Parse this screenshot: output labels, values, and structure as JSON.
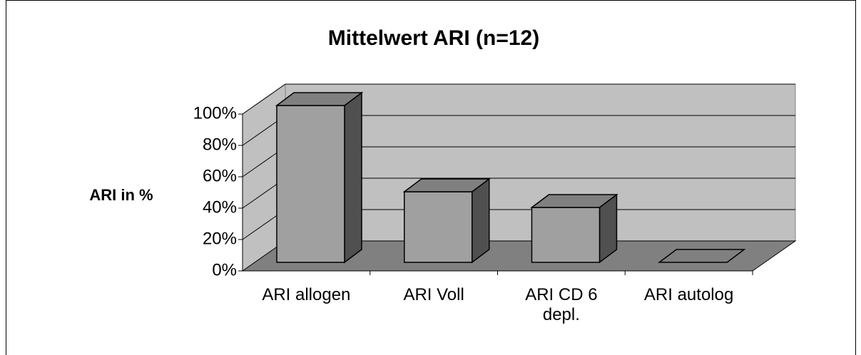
{
  "chart_data": {
    "type": "bar3d",
    "title": "Mittelwert ARI (n=12)",
    "ylabel": "ARI in %",
    "categories": [
      "ARI allogen",
      "ARI Voll",
      "ARI CD 6 depl.",
      "ARI autolog"
    ],
    "values": [
      100,
      45,
      35,
      0
    ],
    "ylim": [
      0,
      100
    ],
    "yticks": [
      {
        "value": 0,
        "label": "0%"
      },
      {
        "value": 20,
        "label": "20%"
      },
      {
        "value": 40,
        "label": "40%"
      },
      {
        "value": 60,
        "label": "60%"
      },
      {
        "value": 80,
        "label": "80%"
      },
      {
        "value": 100,
        "label": "100%"
      }
    ],
    "grid": true,
    "color": "#a0a0a0"
  }
}
